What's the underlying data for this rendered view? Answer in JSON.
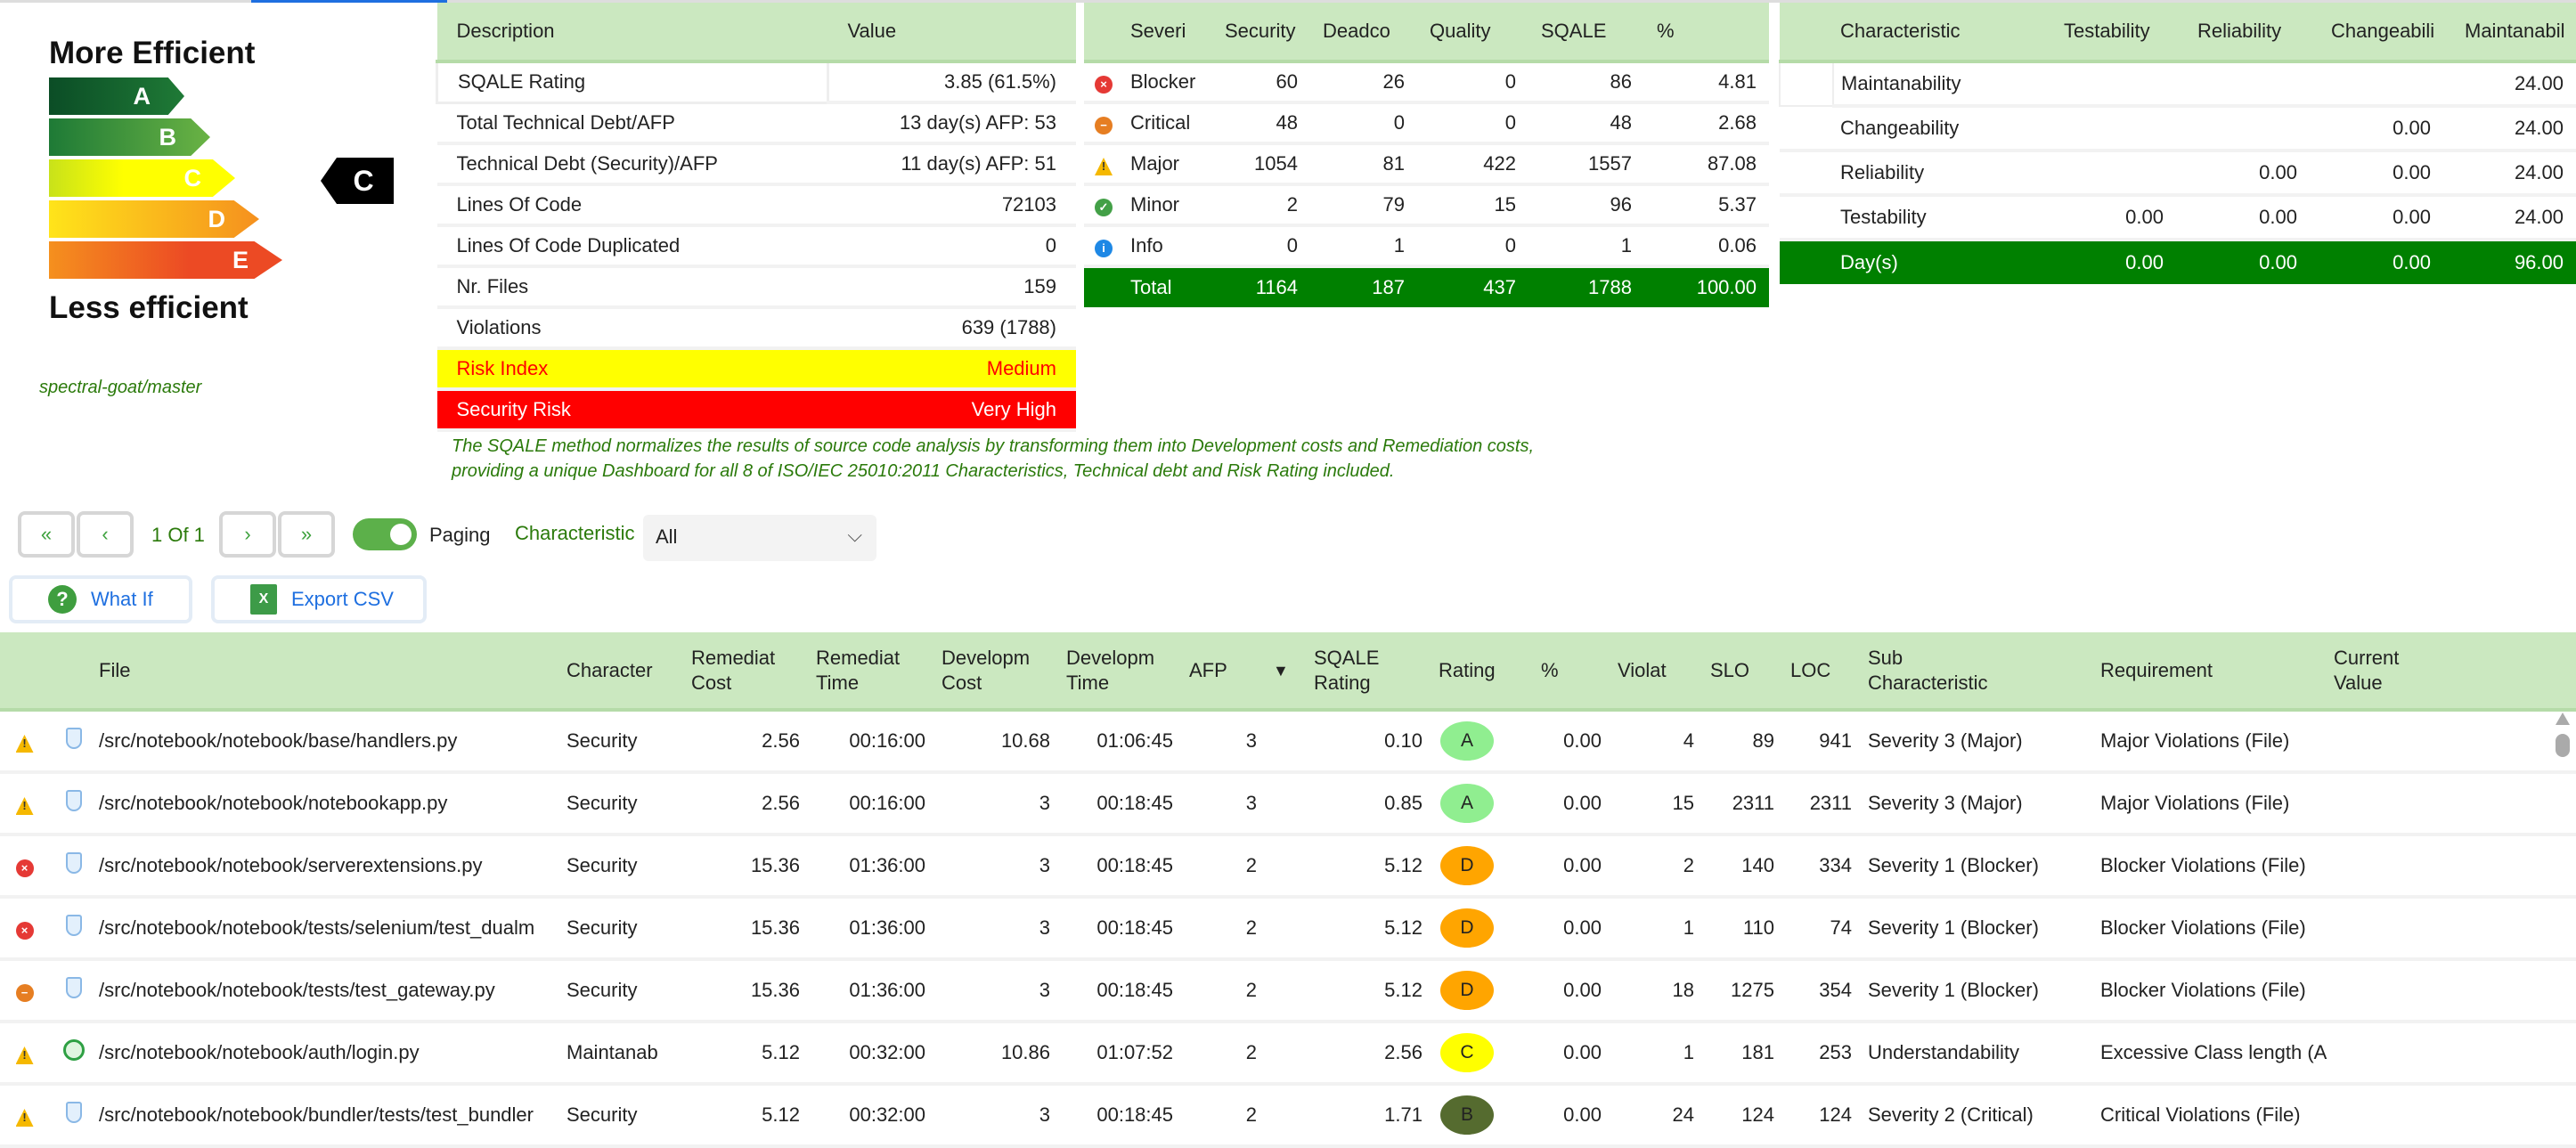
{
  "energy": {
    "top_label": "More Efficient",
    "bottom_label": "Less efficient",
    "grades": [
      "A",
      "B",
      "C",
      "D",
      "E"
    ],
    "current_grade": "C",
    "project": "spectral-goat/master"
  },
  "summary": {
    "headers": [
      "Description",
      "Value"
    ],
    "rows": [
      [
        "SQALE Rating",
        "3.85 (61.5%)"
      ],
      [
        "Total Technical Debt/AFP",
        "13 day(s) AFP: 53"
      ],
      [
        "Technical Debt (Security)/AFP",
        "11 day(s) AFP: 51"
      ],
      [
        "Lines Of Code",
        "72103"
      ],
      [
        "Lines Of Code Duplicated",
        "0"
      ],
      [
        "Nr. Files",
        "159"
      ],
      [
        "Violations",
        "639 (1788)"
      ],
      [
        "Risk Index",
        "Medium"
      ],
      [
        "Security Risk",
        "Very High"
      ]
    ]
  },
  "severity": {
    "headers": [
      "Severi",
      "Security",
      "Deadco",
      "Quality",
      "SQALE",
      "%"
    ],
    "rows": [
      {
        "icon": "blocker-icon",
        "name": "Blocker",
        "vals": [
          "60",
          "26",
          "0",
          "86",
          "4.81"
        ]
      },
      {
        "icon": "critical-icon",
        "name": "Critical",
        "vals": [
          "48",
          "0",
          "0",
          "48",
          "2.68"
        ]
      },
      {
        "icon": "major-icon",
        "name": "Major",
        "vals": [
          "1054",
          "81",
          "422",
          "1557",
          "87.08"
        ]
      },
      {
        "icon": "minor-icon",
        "name": "Minor",
        "vals": [
          "2",
          "79",
          "15",
          "96",
          "5.37"
        ]
      },
      {
        "icon": "info-icon",
        "name": "Info",
        "vals": [
          "0",
          "1",
          "0",
          "1",
          "0.06"
        ]
      }
    ],
    "total": [
      "Total",
      "1164",
      "187",
      "437",
      "1788",
      "100.00"
    ]
  },
  "characteristics": {
    "headers": [
      "Characteristic",
      "Testability",
      "Reliability",
      "Changeabili",
      "Maintanabil"
    ],
    "rows": [
      [
        "Maintanability",
        "",
        "",
        "",
        "24.00"
      ],
      [
        "Changeability",
        "",
        "",
        "0.00",
        "24.00"
      ],
      [
        "Reliability",
        "",
        "0.00",
        "0.00",
        "24.00"
      ],
      [
        "Testability",
        "0.00",
        "0.00",
        "0.00",
        "24.00"
      ]
    ],
    "total": [
      "Day(s)",
      "0.00",
      "0.00",
      "0.00",
      "96.00"
    ]
  },
  "description": [
    "The SQALE method normalizes the results of source code analysis by transforming them into Development costs and Remediation costs,",
    "providing a unique Dashboard for all 8 of ISO/IEC 25010:2011 Characteristics, Technical debt and Risk Rating included."
  ],
  "toolbar": {
    "first": "«",
    "prev": "‹",
    "page": "1 Of 1",
    "next": "›",
    "last": "»",
    "paging_label": "Paging",
    "paging_on": true,
    "characteristic_label": "Characteristic",
    "characteristic_value": "All",
    "what_if": "What If",
    "export_csv": "Export CSV"
  },
  "table": {
    "headers": [
      "",
      "",
      "File",
      "Character",
      "Remediat Cost",
      "Remediat Time",
      "Developm Cost",
      "Developm Time",
      "AFP",
      "▼",
      "SQALE Rating",
      "Rating",
      "%",
      "Violat",
      "SLO",
      "LOC",
      "Sub Characteristic",
      "Requirement",
      "Current Value"
    ],
    "rows": [
      {
        "sev": "major",
        "type": "security",
        "file": "/src/notebook/notebook/base/handlers.py",
        "char": "Security",
        "rc": "2.56",
        "rt": "00:16:00",
        "dc": "10.68",
        "dt": "01:06:45",
        "afp": "3",
        "sqale": "0.10",
        "rating": "A",
        "pct": "0.00",
        "viol": "4",
        "slo": "89",
        "loc": "941",
        "sub": "Severity 3 (Major)",
        "req": "Major Violations (File)",
        "cur": ""
      },
      {
        "sev": "major",
        "type": "security",
        "file": "/src/notebook/notebook/notebookapp.py",
        "char": "Security",
        "rc": "2.56",
        "rt": "00:16:00",
        "dc": "3",
        "dt": "00:18:45",
        "afp": "3",
        "sqale": "0.85",
        "rating": "A",
        "pct": "0.00",
        "viol": "15",
        "slo": "2311",
        "loc": "2311",
        "sub": "Severity 3 (Major)",
        "req": "Major Violations (File)",
        "cur": ""
      },
      {
        "sev": "blocker",
        "type": "security",
        "file": "/src/notebook/notebook/serverextensions.py",
        "char": "Security",
        "rc": "15.36",
        "rt": "01:36:00",
        "dc": "3",
        "dt": "00:18:45",
        "afp": "2",
        "sqale": "5.12",
        "rating": "D",
        "pct": "0.00",
        "viol": "2",
        "slo": "140",
        "loc": "334",
        "sub": "Severity 1 (Blocker)",
        "req": "Blocker Violations (File)",
        "cur": ""
      },
      {
        "sev": "blocker",
        "type": "security",
        "file": "/src/notebook/notebook/tests/selenium/test_dualm",
        "char": "Security",
        "rc": "15.36",
        "rt": "01:36:00",
        "dc": "3",
        "dt": "00:18:45",
        "afp": "2",
        "sqale": "5.12",
        "rating": "D",
        "pct": "0.00",
        "viol": "1",
        "slo": "110",
        "loc": "74",
        "sub": "Severity 1 (Blocker)",
        "req": "Blocker Violations (File)",
        "cur": ""
      },
      {
        "sev": "critical",
        "type": "security",
        "file": "/src/notebook/notebook/tests/test_gateway.py",
        "char": "Security",
        "rc": "15.36",
        "rt": "01:36:00",
        "dc": "3",
        "dt": "00:18:45",
        "afp": "2",
        "sqale": "5.12",
        "rating": "D",
        "pct": "0.00",
        "viol": "18",
        "slo": "1275",
        "loc": "354",
        "sub": "Severity 1 (Blocker)",
        "req": "Blocker Violations (File)",
        "cur": ""
      },
      {
        "sev": "major",
        "type": "maintainability",
        "file": "/src/notebook/notebook/auth/login.py",
        "char": "Maintanab",
        "rc": "5.12",
        "rt": "00:32:00",
        "dc": "10.86",
        "dt": "01:07:52",
        "afp": "2",
        "sqale": "2.56",
        "rating": "C",
        "pct": "0.00",
        "viol": "1",
        "slo": "181",
        "loc": "253",
        "sub": "Understandability",
        "req": "Excessive Class length (A",
        "cur": ""
      },
      {
        "sev": "major",
        "type": "security",
        "file": "/src/notebook/notebook/bundler/tests/test_bundler",
        "char": "Security",
        "rc": "5.12",
        "rt": "00:32:00",
        "dc": "3",
        "dt": "00:18:45",
        "afp": "2",
        "sqale": "1.71",
        "rating": "B",
        "pct": "0.00",
        "viol": "24",
        "slo": "124",
        "loc": "124",
        "sub": "Severity 2 (Critical)",
        "req": "Critical Violations (File)",
        "cur": ""
      }
    ]
  },
  "colors": {
    "header_green": "#cbe8c0",
    "total_green": "#008000",
    "risk_yellow": "#ffff00",
    "risk_red": "#ff0000",
    "rating_A": "#90ee90",
    "rating_B": "#556b2f",
    "rating_C": "#ffff00",
    "rating_D": "#ffa500",
    "accent_blue": "#1e6fe0"
  }
}
